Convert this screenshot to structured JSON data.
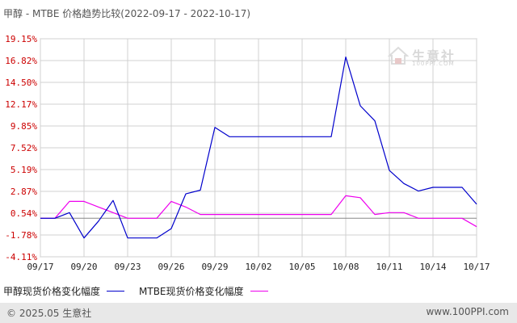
{
  "title": "甲醇 - MTBE 价格趋势比较(2022-09-17 - 2022-10-17)",
  "colors": {
    "series1": "#0000cc",
    "series2": "#ee00ee",
    "grid": "#d0d0d0",
    "zero": "#888888"
  },
  "legend": [
    {
      "label": "甲醇现货价格变化幅度",
      "color": "#0000cc"
    },
    {
      "label": "MTBE现货价格变化幅度",
      "color": "#ee00ee"
    }
  ],
  "watermark": {
    "text": "生意社",
    "sub": "100PPI.COM"
  },
  "footer": {
    "copyright": "© 2025.05 生意社",
    "site": "www.100PPI.com"
  },
  "chart_data": {
    "type": "line",
    "title": "甲醇 - MTBE 价格趋势比较(2022-09-17 - 2022-10-17)",
    "xlabel": "",
    "ylabel": "",
    "ylim": [
      -4.11,
      19.15
    ],
    "grid": true,
    "legend_position": "bottom",
    "ytick_labels": [
      "19.15%",
      "16.82%",
      "14.50%",
      "12.17%",
      "9.85%",
      "7.52%",
      "5.19%",
      "2.87%",
      "0.54%",
      "-1.78%",
      "-4.11%"
    ],
    "ytick_values": [
      19.15,
      16.82,
      14.5,
      12.17,
      9.85,
      7.52,
      5.19,
      2.87,
      0.54,
      -1.78,
      -4.11
    ],
    "xtick_labels": [
      "09/17",
      "09/20",
      "09/23",
      "09/26",
      "09/29",
      "10/02",
      "10/05",
      "10/08",
      "10/11",
      "10/14",
      "10/17"
    ],
    "x": [
      "09/17",
      "09/18",
      "09/19",
      "09/20",
      "09/21",
      "09/22",
      "09/23",
      "09/24",
      "09/25",
      "09/26",
      "09/27",
      "09/28",
      "09/29",
      "09/30",
      "10/01",
      "10/02",
      "10/03",
      "10/04",
      "10/05",
      "10/06",
      "10/07",
      "10/08",
      "10/09",
      "10/10",
      "10/11",
      "10/12",
      "10/13",
      "10/14",
      "10/15",
      "10/16",
      "10/17"
    ],
    "series": [
      {
        "name": "甲醇现货价格变化幅度",
        "values": [
          0,
          0,
          0.6,
          -2.1,
          -0.3,
          1.9,
          -2.1,
          -2.1,
          -2.1,
          -1.1,
          2.6,
          3.0,
          9.7,
          8.7,
          8.7,
          8.7,
          8.7,
          8.7,
          8.7,
          8.7,
          8.7,
          17.2,
          12.0,
          10.4,
          5.1,
          3.7,
          2.9,
          3.3,
          3.3,
          3.3,
          1.5
        ]
      },
      {
        "name": "MTBE现货价格变化幅度",
        "values": [
          0,
          0,
          1.8,
          1.8,
          1.2,
          0.6,
          0,
          0,
          0,
          1.8,
          1.2,
          0.4,
          0.4,
          0.4,
          0.4,
          0.4,
          0.4,
          0.4,
          0.4,
          0.4,
          0.4,
          2.4,
          2.2,
          0.4,
          0.6,
          0.6,
          0,
          0,
          0,
          0,
          -0.9
        ]
      }
    ]
  }
}
